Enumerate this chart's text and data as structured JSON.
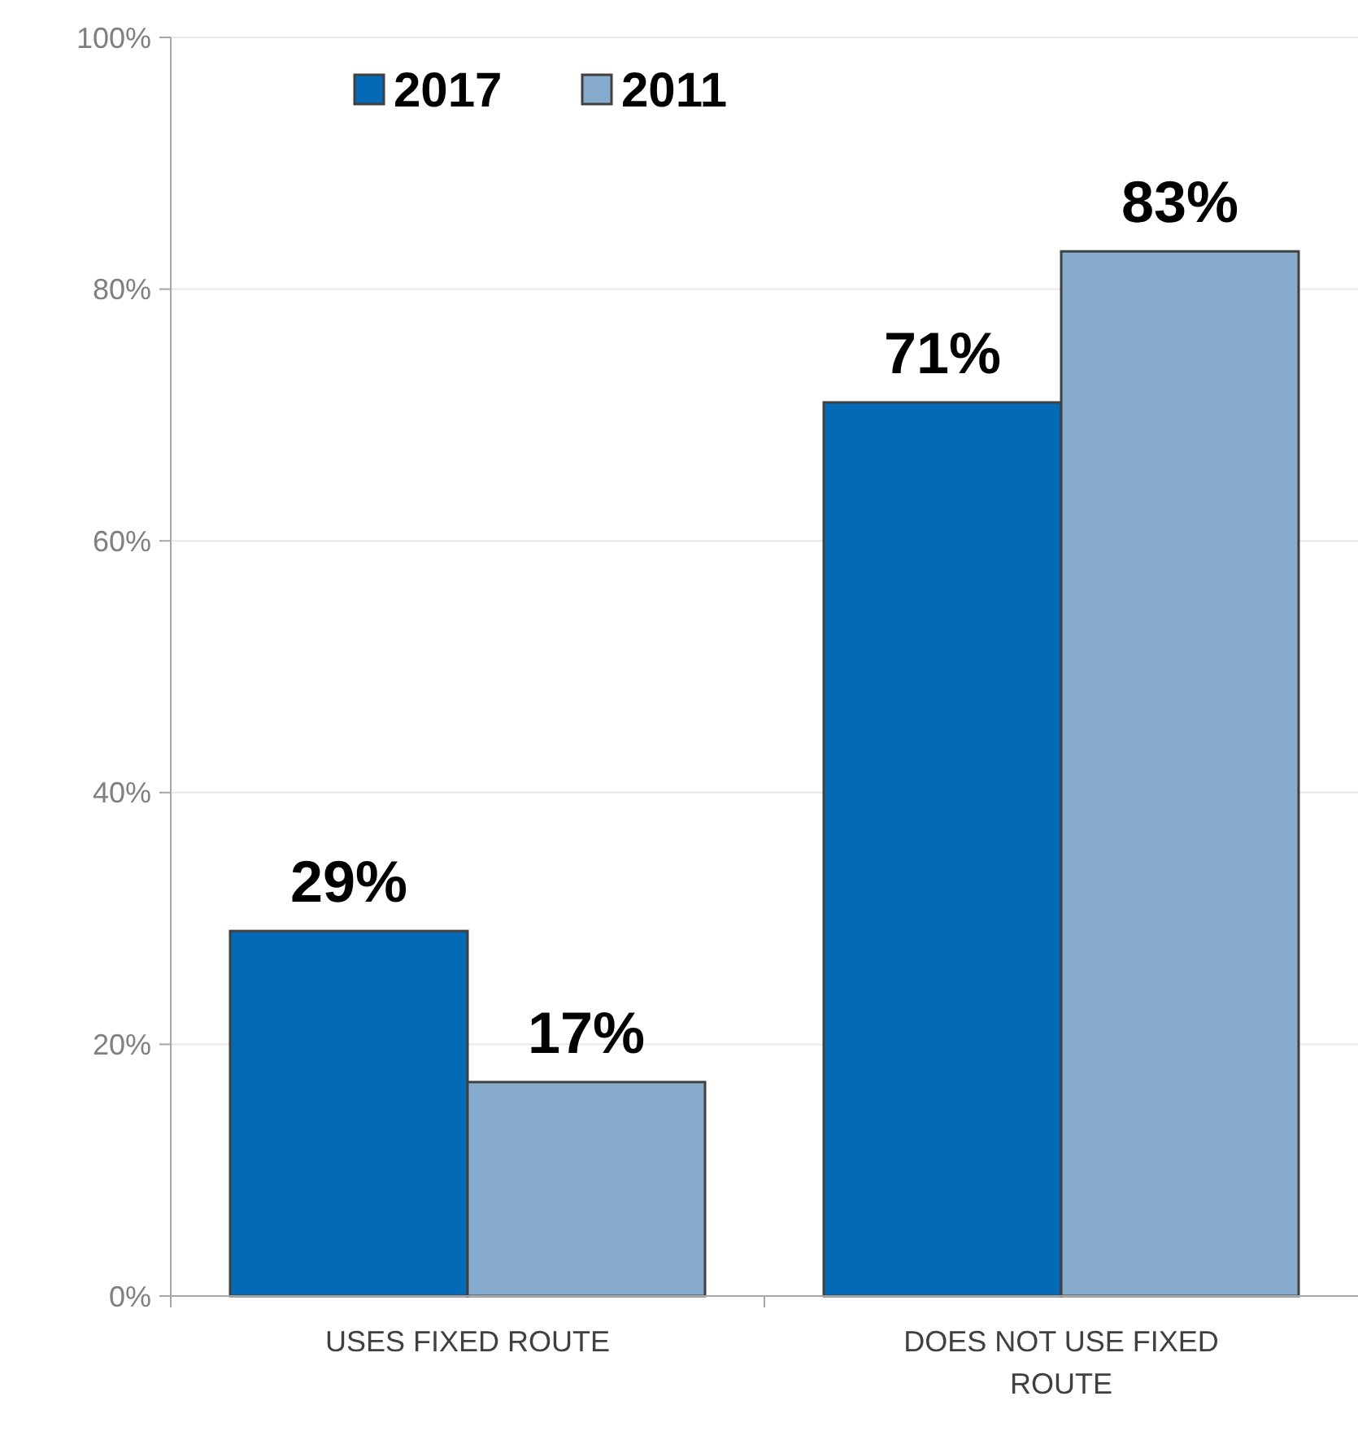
{
  "chart_data": {
    "type": "bar",
    "categories": [
      "USES FIXED ROUTE",
      "DOES NOT USE FIXED ROUTE"
    ],
    "series": [
      {
        "name": "2017",
        "color": "#056ab6",
        "values": [
          29,
          71
        ]
      },
      {
        "name": "2011",
        "color": "#87abcc",
        "values": [
          17,
          83
        ]
      }
    ],
    "ylim": [
      0,
      100
    ],
    "yticks": [
      {
        "value": 0,
        "label": "0%"
      },
      {
        "value": 20,
        "label": "20%"
      },
      {
        "value": 40,
        "label": "40%"
      },
      {
        "value": 60,
        "label": "60%"
      },
      {
        "value": 80,
        "label": "80%"
      },
      {
        "value": 100,
        "label": "100%"
      }
    ],
    "value_labels": [
      [
        "29%",
        "71%"
      ],
      [
        "17%",
        "83%"
      ]
    ],
    "grid": "y",
    "legend": "top"
  }
}
